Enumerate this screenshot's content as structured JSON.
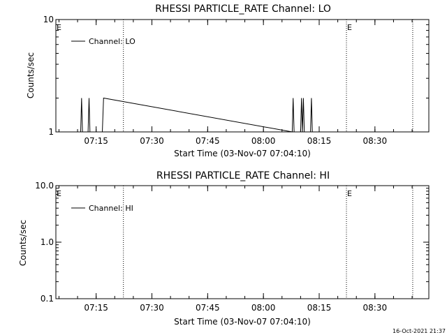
{
  "footer": {
    "timestamp": "16-Oct-2021 21:37"
  },
  "chart_data": [
    {
      "type": "line",
      "title": "RHESSI PARTICLE_RATE Channel: LO",
      "xlabel": "Start Time (03-Nov-07 07:04:10)",
      "ylabel": "Counts/sec",
      "yscale": "log",
      "xlim": [
        "07:04:10",
        "08:44:30"
      ],
      "ylim": [
        1,
        10
      ],
      "xticks": [
        "07:15",
        "07:30",
        "07:45",
        "08:00",
        "08:15",
        "08:30"
      ],
      "yticks": [
        "1",
        "10"
      ],
      "legend": "Channel: LO",
      "legend_position": "top-left",
      "event_markers": [
        {
          "time": "07:04:10",
          "label": "E",
          "dotted": false
        },
        {
          "time": "07:22:20",
          "label": "",
          "dotted": true
        },
        {
          "time": "08:22:20",
          "label": "E",
          "dotted": true
        },
        {
          "time": "08:40:10",
          "label": "",
          "dotted": true
        }
      ],
      "series": [
        {
          "name": "Channel: LO",
          "points": [
            [
              "07:10:30",
              1
            ],
            [
              "07:10:50",
              1
            ],
            [
              "07:11:05",
              2
            ],
            [
              "07:11:20",
              1
            ],
            [
              "07:12:50",
              1
            ],
            [
              "07:13:05",
              2
            ],
            [
              "07:13:20",
              1
            ],
            [
              "07:16:40",
              1
            ],
            [
              "07:17:00",
              2
            ],
            [
              "08:07:45",
              1
            ],
            [
              "08:08:00",
              2
            ],
            [
              "08:08:15",
              1
            ],
            [
              "08:10:00",
              1
            ],
            [
              "08:10:15",
              2
            ],
            [
              "08:10:30",
              1
            ],
            [
              "08:10:45",
              2
            ],
            [
              "08:11:00",
              1
            ],
            [
              "08:12:40",
              1
            ],
            [
              "08:12:55",
              2
            ],
            [
              "08:13:10",
              1
            ]
          ]
        }
      ]
    },
    {
      "type": "line",
      "title": "RHESSI PARTICLE_RATE Channel: HI",
      "xlabel": "Start Time (03-Nov-07 07:04:10)",
      "ylabel": "Counts/sec",
      "yscale": "log",
      "xlim": [
        "07:04:10",
        "08:44:30"
      ],
      "ylim": [
        0.1,
        10
      ],
      "xticks": [
        "07:15",
        "07:30",
        "07:45",
        "08:00",
        "08:15",
        "08:30"
      ],
      "yticks": [
        "0.1",
        "1.0",
        "10.0"
      ],
      "legend": "Channel: HI",
      "legend_position": "top-left",
      "event_markers": [
        {
          "time": "07:04:10",
          "label": "E",
          "dotted": false
        },
        {
          "time": "07:22:20",
          "label": "",
          "dotted": true
        },
        {
          "time": "08:22:20",
          "label": "E",
          "dotted": true
        },
        {
          "time": "08:40:10",
          "label": "",
          "dotted": true
        }
      ],
      "series": [
        {
          "name": "Channel: HI",
          "points": []
        }
      ]
    }
  ]
}
